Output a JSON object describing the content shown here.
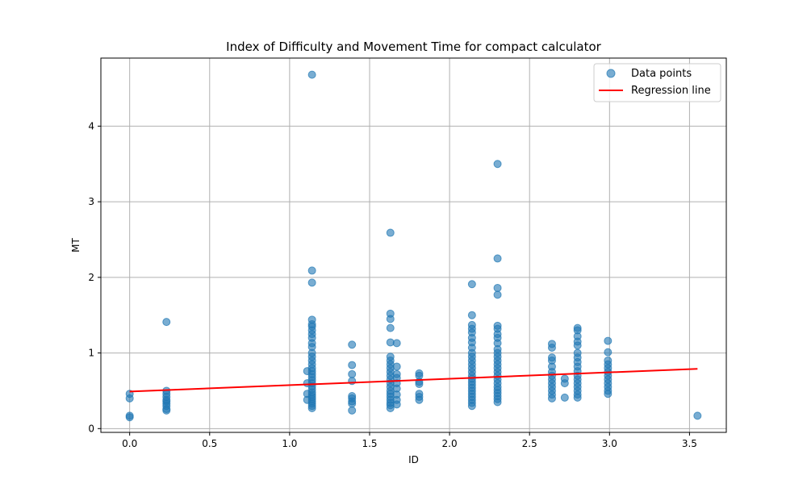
{
  "chart_data": {
    "type": "scatter",
    "title": "Index of Difficulty and Movement Time for compact calculator",
    "xlabel": "ID",
    "ylabel": "MT",
    "xlim": [
      -0.18,
      3.73
    ],
    "ylim": [
      -0.05,
      4.9
    ],
    "xticks": [
      0.0,
      0.5,
      1.0,
      1.5,
      2.0,
      2.5,
      3.0,
      3.5
    ],
    "xtick_labels": [
      "0.0",
      "0.5",
      "1.0",
      "1.5",
      "2.0",
      "2.5",
      "3.0",
      "3.5"
    ],
    "yticks": [
      0,
      1,
      2,
      3,
      4
    ],
    "ytick_labels": [
      "0",
      "1",
      "2",
      "3",
      "4"
    ],
    "grid": true,
    "legend_position": "top-right",
    "colors": {
      "points": "#1f77b4",
      "regression": "#ff0000",
      "grid": "#b0b0b0"
    },
    "series": [
      {
        "name": "Data points",
        "kind": "scatter",
        "points": [
          [
            0.0,
            0.15
          ],
          [
            0.0,
            0.17
          ],
          [
            0.0,
            0.4
          ],
          [
            0.0,
            0.46
          ],
          [
            0.23,
            0.24
          ],
          [
            0.23,
            0.26
          ],
          [
            0.23,
            0.3
          ],
          [
            0.23,
            0.33
          ],
          [
            0.23,
            0.36
          ],
          [
            0.23,
            0.38
          ],
          [
            0.23,
            0.42
          ],
          [
            0.23,
            0.46
          ],
          [
            0.23,
            0.5
          ],
          [
            0.23,
            1.41
          ],
          [
            1.11,
            0.38
          ],
          [
            1.11,
            0.46
          ],
          [
            1.11,
            0.6
          ],
          [
            1.11,
            0.76
          ],
          [
            1.14,
            0.27
          ],
          [
            1.14,
            0.3
          ],
          [
            1.14,
            0.33
          ],
          [
            1.14,
            0.36
          ],
          [
            1.14,
            0.39
          ],
          [
            1.14,
            0.42
          ],
          [
            1.14,
            0.45
          ],
          [
            1.14,
            0.48
          ],
          [
            1.14,
            0.52
          ],
          [
            1.14,
            0.56
          ],
          [
            1.14,
            0.6
          ],
          [
            1.14,
            0.64
          ],
          [
            1.14,
            0.68
          ],
          [
            1.14,
            0.72
          ],
          [
            1.14,
            0.76
          ],
          [
            1.14,
            0.8
          ],
          [
            1.14,
            0.85
          ],
          [
            1.14,
            0.9
          ],
          [
            1.14,
            0.95
          ],
          [
            1.14,
            1.0
          ],
          [
            1.14,
            1.08
          ],
          [
            1.14,
            1.13
          ],
          [
            1.14,
            1.2
          ],
          [
            1.14,
            1.25
          ],
          [
            1.14,
            1.3
          ],
          [
            1.14,
            1.35
          ],
          [
            1.14,
            1.38
          ],
          [
            1.14,
            1.44
          ],
          [
            1.14,
            1.93
          ],
          [
            1.14,
            2.09
          ],
          [
            1.14,
            4.68
          ],
          [
            1.39,
            0.24
          ],
          [
            1.39,
            0.33
          ],
          [
            1.39,
            0.36
          ],
          [
            1.39,
            0.4
          ],
          [
            1.39,
            0.43
          ],
          [
            1.39,
            0.63
          ],
          [
            1.39,
            0.72
          ],
          [
            1.39,
            0.84
          ],
          [
            1.39,
            1.11
          ],
          [
            1.63,
            0.27
          ],
          [
            1.63,
            0.31
          ],
          [
            1.63,
            0.34
          ],
          [
            1.63,
            0.38
          ],
          [
            1.63,
            0.42
          ],
          [
            1.63,
            0.46
          ],
          [
            1.63,
            0.5
          ],
          [
            1.63,
            0.55
          ],
          [
            1.63,
            0.6
          ],
          [
            1.63,
            0.65
          ],
          [
            1.63,
            0.7
          ],
          [
            1.63,
            0.75
          ],
          [
            1.63,
            0.8
          ],
          [
            1.63,
            0.85
          ],
          [
            1.63,
            0.9
          ],
          [
            1.63,
            0.95
          ],
          [
            1.63,
            1.14
          ],
          [
            1.63,
            1.33
          ],
          [
            1.63,
            1.45
          ],
          [
            1.63,
            1.52
          ],
          [
            1.63,
            2.59
          ],
          [
            1.67,
            0.32
          ],
          [
            1.67,
            0.38
          ],
          [
            1.67,
            0.45
          ],
          [
            1.67,
            0.53
          ],
          [
            1.67,
            0.6
          ],
          [
            1.67,
            0.67
          ],
          [
            1.67,
            0.72
          ],
          [
            1.67,
            0.82
          ],
          [
            1.67,
            1.13
          ],
          [
            1.81,
            0.38
          ],
          [
            1.81,
            0.42
          ],
          [
            1.81,
            0.46
          ],
          [
            1.81,
            0.59
          ],
          [
            1.81,
            0.62
          ],
          [
            1.81,
            0.7
          ],
          [
            1.81,
            0.73
          ],
          [
            2.14,
            0.3
          ],
          [
            2.14,
            0.34
          ],
          [
            2.14,
            0.38
          ],
          [
            2.14,
            0.42
          ],
          [
            2.14,
            0.46
          ],
          [
            2.14,
            0.5
          ],
          [
            2.14,
            0.54
          ],
          [
            2.14,
            0.58
          ],
          [
            2.14,
            0.62
          ],
          [
            2.14,
            0.66
          ],
          [
            2.14,
            0.7
          ],
          [
            2.14,
            0.75
          ],
          [
            2.14,
            0.8
          ],
          [
            2.14,
            0.85
          ],
          [
            2.14,
            0.9
          ],
          [
            2.14,
            0.95
          ],
          [
            2.14,
            1.0
          ],
          [
            2.14,
            1.07
          ],
          [
            2.14,
            1.14
          ],
          [
            2.14,
            1.2
          ],
          [
            2.14,
            1.27
          ],
          [
            2.14,
            1.32
          ],
          [
            2.14,
            1.37
          ],
          [
            2.14,
            1.5
          ],
          [
            2.14,
            1.91
          ],
          [
            2.3,
            0.35
          ],
          [
            2.3,
            0.39
          ],
          [
            2.3,
            0.43
          ],
          [
            2.3,
            0.47
          ],
          [
            2.3,
            0.51
          ],
          [
            2.3,
            0.55
          ],
          [
            2.3,
            0.6
          ],
          [
            2.3,
            0.65
          ],
          [
            2.3,
            0.7
          ],
          [
            2.3,
            0.75
          ],
          [
            2.3,
            0.8
          ],
          [
            2.3,
            0.85
          ],
          [
            2.3,
            0.9
          ],
          [
            2.3,
            0.95
          ],
          [
            2.3,
            1.0
          ],
          [
            2.3,
            1.05
          ],
          [
            2.3,
            1.13
          ],
          [
            2.3,
            1.2
          ],
          [
            2.3,
            1.25
          ],
          [
            2.3,
            1.32
          ],
          [
            2.3,
            1.36
          ],
          [
            2.3,
            1.77
          ],
          [
            2.3,
            1.86
          ],
          [
            2.3,
            2.25
          ],
          [
            2.3,
            3.5
          ],
          [
            2.64,
            0.4
          ],
          [
            2.64,
            0.45
          ],
          [
            2.64,
            0.5
          ],
          [
            2.64,
            0.55
          ],
          [
            2.64,
            0.6
          ],
          [
            2.64,
            0.65
          ],
          [
            2.64,
            0.7
          ],
          [
            2.64,
            0.75
          ],
          [
            2.64,
            0.82
          ],
          [
            2.64,
            0.9
          ],
          [
            2.64,
            0.94
          ],
          [
            2.64,
            1.07
          ],
          [
            2.64,
            1.12
          ],
          [
            2.72,
            0.41
          ],
          [
            2.72,
            0.6
          ],
          [
            2.72,
            0.66
          ],
          [
            2.8,
            0.41
          ],
          [
            2.8,
            0.45
          ],
          [
            2.8,
            0.5
          ],
          [
            2.8,
            0.55
          ],
          [
            2.8,
            0.6
          ],
          [
            2.8,
            0.65
          ],
          [
            2.8,
            0.7
          ],
          [
            2.8,
            0.76
          ],
          [
            2.8,
            0.82
          ],
          [
            2.8,
            0.88
          ],
          [
            2.8,
            0.94
          ],
          [
            2.8,
            1.0
          ],
          [
            2.8,
            1.1
          ],
          [
            2.8,
            1.15
          ],
          [
            2.8,
            1.22
          ],
          [
            2.8,
            1.3
          ],
          [
            2.8,
            1.33
          ],
          [
            2.99,
            0.46
          ],
          [
            2.99,
            0.5
          ],
          [
            2.99,
            0.55
          ],
          [
            2.99,
            0.6
          ],
          [
            2.99,
            0.65
          ],
          [
            2.99,
            0.7
          ],
          [
            2.99,
            0.75
          ],
          [
            2.99,
            0.8
          ],
          [
            2.99,
            0.85
          ],
          [
            2.99,
            0.9
          ],
          [
            2.99,
            1.01
          ],
          [
            2.99,
            1.16
          ],
          [
            3.55,
            0.17
          ]
        ]
      },
      {
        "name": "Regression line",
        "kind": "line",
        "points": [
          [
            0.0,
            0.49
          ],
          [
            3.55,
            0.79
          ]
        ]
      }
    ]
  }
}
